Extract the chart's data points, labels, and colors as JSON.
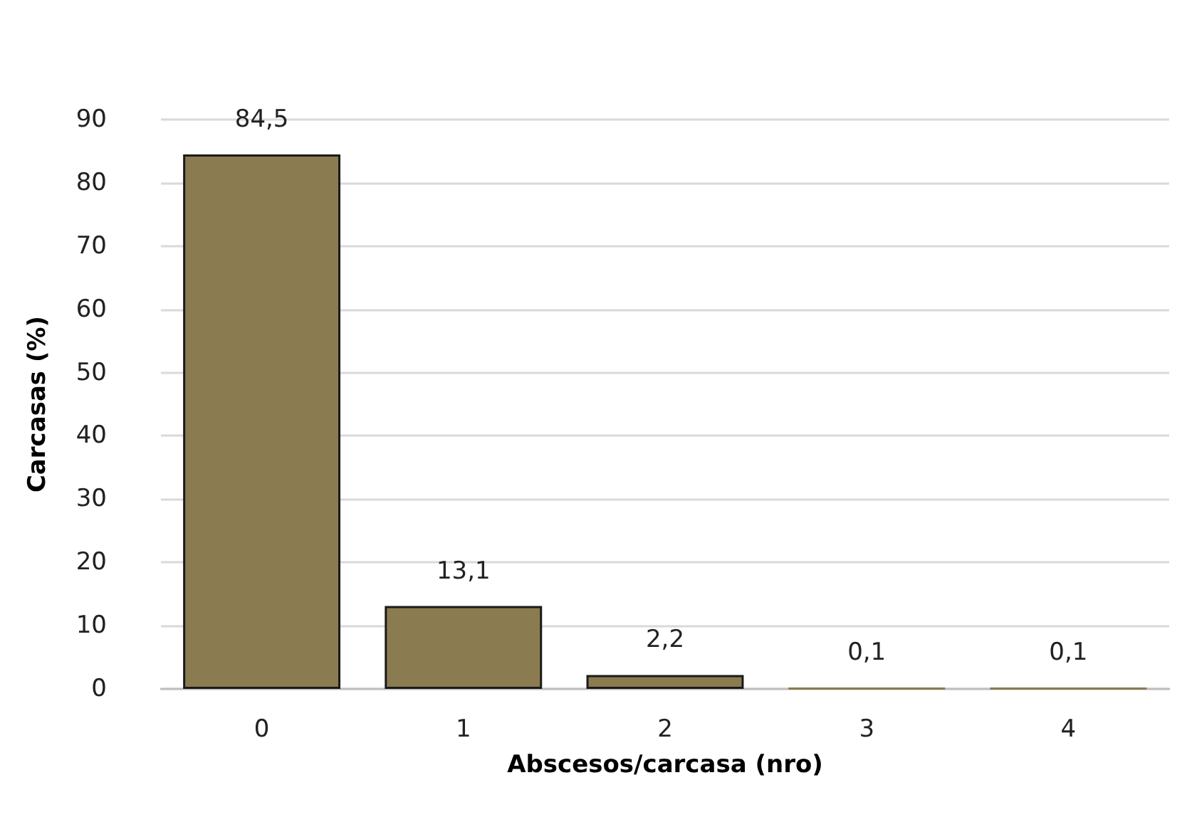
{
  "chart_data": {
    "type": "bar",
    "xlabel": "Abscesos/carcasa (nro)",
    "ylabel": "Carcasas (%)",
    "categories": [
      "0",
      "1",
      "2",
      "3",
      "4"
    ],
    "values": [
      84.5,
      13.1,
      2.2,
      0.1,
      0.1
    ],
    "value_labels": [
      "84,5",
      "13,1",
      "2,2",
      "0,1",
      "0,1"
    ],
    "color": "#8b7b50",
    "ylim": [
      0,
      90
    ],
    "yticks": [
      0,
      10,
      20,
      30,
      40,
      50,
      60,
      70,
      80,
      90
    ],
    "grid": "y"
  }
}
